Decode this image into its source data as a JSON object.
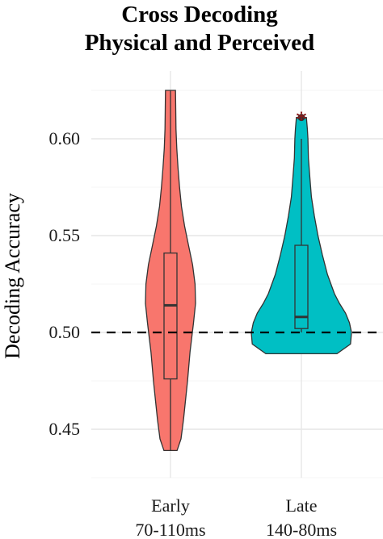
{
  "chart_data": {
    "type": "violin",
    "title_lines": [
      "Cross Decoding",
      "Physical and Perceived"
    ],
    "xlabel": "",
    "ylabel": "Decoding Accuracy",
    "ylim": [
      0.425,
      0.635
    ],
    "yticks": [
      0.45,
      0.5,
      0.55,
      0.6
    ],
    "ytick_labels": [
      "0.45",
      "0.50",
      "0.55",
      "0.60"
    ],
    "categories": [
      "Early\n70-110ms",
      "Late\n140-80ms"
    ],
    "category_lines": [
      [
        "Early",
        "70-110ms"
      ],
      [
        "Late",
        "140-80ms"
      ]
    ],
    "reference_line": 0.5,
    "grid": true,
    "legend": "none",
    "groups": [
      {
        "category": "Early",
        "color": "#f8766d",
        "min": 0.439,
        "q1": 0.476,
        "median": 0.514,
        "q3": 0.541,
        "max": 0.625,
        "outliers": [],
        "significance": "",
        "density": [
          [
            0.439,
            0.26
          ],
          [
            0.445,
            0.42
          ],
          [
            0.455,
            0.52
          ],
          [
            0.465,
            0.6
          ],
          [
            0.475,
            0.68
          ],
          [
            0.49,
            0.78
          ],
          [
            0.505,
            0.92
          ],
          [
            0.515,
            1.0
          ],
          [
            0.525,
            0.98
          ],
          [
            0.535,
            0.88
          ],
          [
            0.545,
            0.72
          ],
          [
            0.555,
            0.56
          ],
          [
            0.565,
            0.44
          ],
          [
            0.575,
            0.36
          ],
          [
            0.585,
            0.3
          ],
          [
            0.595,
            0.25
          ],
          [
            0.605,
            0.22
          ],
          [
            0.615,
            0.21
          ],
          [
            0.625,
            0.2
          ]
        ]
      },
      {
        "category": "Late",
        "color": "#00bfc4",
        "min": 0.5,
        "q1": 0.502,
        "median": 0.508,
        "q3": 0.545,
        "max": 0.6,
        "outliers": [
          0.611
        ],
        "significance": "*",
        "density": [
          [
            0.489,
            0.71
          ],
          [
            0.494,
            0.98
          ],
          [
            0.5,
            1.0
          ],
          [
            0.505,
            0.96
          ],
          [
            0.51,
            0.88
          ],
          [
            0.515,
            0.76
          ],
          [
            0.52,
            0.66
          ],
          [
            0.53,
            0.52
          ],
          [
            0.54,
            0.42
          ],
          [
            0.55,
            0.33
          ],
          [
            0.56,
            0.26
          ],
          [
            0.57,
            0.2
          ],
          [
            0.58,
            0.17
          ],
          [
            0.59,
            0.14
          ],
          [
            0.6,
            0.13
          ],
          [
            0.605,
            0.12
          ],
          [
            0.611,
            0.1
          ]
        ]
      }
    ]
  }
}
